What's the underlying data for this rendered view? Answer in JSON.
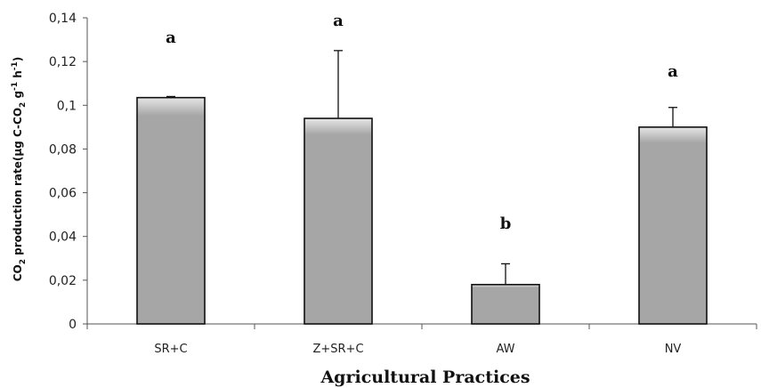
{
  "chart_data": {
    "type": "bar",
    "categories": [
      "SR+C",
      "Z+SR+C",
      "AW",
      "NV"
    ],
    "values": [
      0.1035,
      0.094,
      0.018,
      0.09
    ],
    "error_plus": [
      0.0005,
      0.031,
      0.0095,
      0.009
    ],
    "significance": [
      "a",
      "a",
      "b",
      "a"
    ],
    "y_ticks": [
      "0",
      "0,02",
      "0,04",
      "0,06",
      "0,08",
      "0,1",
      "0,12",
      "0,14"
    ],
    "ylim": [
      0,
      0.14
    ],
    "xlabel": "Agricultural  Practices",
    "ylabel_main": "CO",
    "ylabel_sub": "2",
    "ylabel_rest": " production rate(µg C-CO",
    "ylabel_sub2": "2",
    "ylabel_mid": " g",
    "ylabel_sup1": "-1",
    "ylabel_h": " h",
    "ylabel_sup2": "-1",
    "ylabel_end": ")",
    "grid": false,
    "bar_color": "#a6a6a6"
  }
}
